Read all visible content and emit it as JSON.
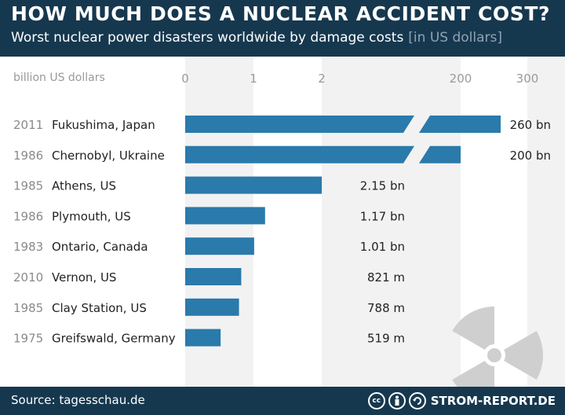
{
  "header": {
    "title": "HOW MUCH DOES A NUCLEAR ACCIDENT COST?",
    "subtitle": "Worst nuclear power disasters worldwide by damage costs",
    "subtitle_unit": "[in US dollars]"
  },
  "footer": {
    "source": "Source: tagesschau.de",
    "brand": "STROM-REPORT.DE",
    "license_icons": [
      "cc-icon",
      "by-icon",
      "sa-icon"
    ]
  },
  "colors": {
    "header_bg": "#16384f",
    "bar": "#2a7aab",
    "band": "#f2f2f2",
    "year_text": "#8a8a8a",
    "label_text": "#222222",
    "tick_text": "#9a9a9a",
    "radiation_icon": "#cfcfcf"
  },
  "chart_data": {
    "type": "bar",
    "orientation": "horizontal",
    "axis_label": "billion US dollars",
    "axis_break": true,
    "x_ticks": [
      0,
      1,
      2,
      200,
      300
    ],
    "categories": [
      "Fukushima, Japan",
      "Chernobyl, Ukraine",
      "Athens, US",
      "Plymouth, US",
      "Ontario, Canada",
      "Vernon, US",
      "Clay Station, US",
      "Greifswald, Germany"
    ],
    "years": [
      "2011",
      "1986",
      "1985",
      "1986",
      "1983",
      "2010",
      "1985",
      "1975"
    ],
    "values": [
      260,
      200,
      2.15,
      1.17,
      1.01,
      0.821,
      0.788,
      0.519
    ],
    "value_labels": [
      "260 bn",
      "200 bn",
      "2.15 bn",
      "1.17 bn",
      "1.01 bn",
      "821 m",
      "788 m",
      "519 m"
    ],
    "background_icon": "radiation-icon"
  }
}
